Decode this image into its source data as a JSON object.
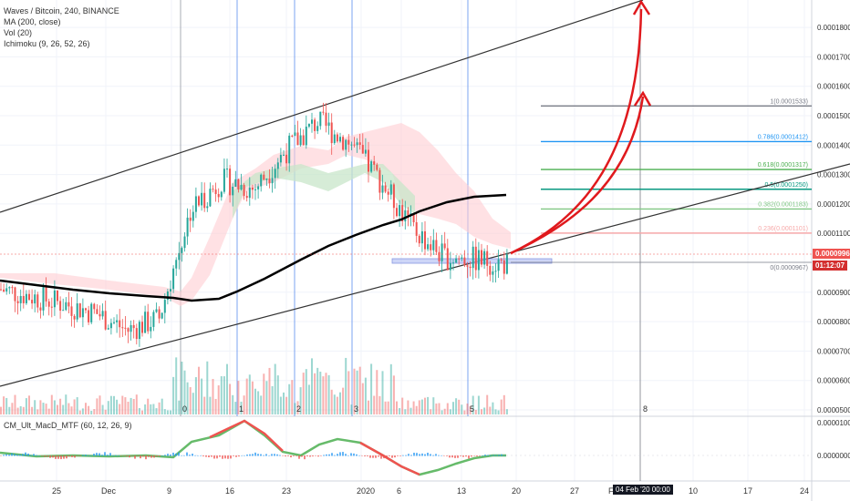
{
  "legend": {
    "title": "Waves / Bitcoin, 240, BINANCE",
    "ma": "MA (200, close)",
    "vol": "Vol (20)",
    "ichimoku": "Ichimoku (9, 26, 52, 26)"
  },
  "macd_legend": "CM_Ult_MacD_MTF (60, 12, 26, 9)",
  "price_axis": [
    {
      "label": "0.0001800",
      "price": 0.00018
    },
    {
      "label": "0.0001700",
      "price": 0.00017
    },
    {
      "label": "0.0001600",
      "price": 0.00016
    },
    {
      "label": "0.0001500",
      "price": 0.00015
    },
    {
      "label": "0.0001400",
      "price": 0.00014
    },
    {
      "label": "0.0001300",
      "price": 0.00013
    },
    {
      "label": "0.0001200",
      "price": 0.00012
    },
    {
      "label": "0.0001100",
      "price": 0.00011
    },
    {
      "label": "0.0000900",
      "price": 9e-05
    },
    {
      "label": "0.0000800",
      "price": 8e-05
    },
    {
      "label": "0.0000700",
      "price": 7e-05
    },
    {
      "label": "0.0000600",
      "price": 6e-05
    },
    {
      "label": "0.0000500",
      "price": 5e-05
    }
  ],
  "macd_axis": [
    {
      "label": "0.0000100",
      "value": 1e-05
    },
    {
      "label": "0.0000000",
      "value": 0
    }
  ],
  "current_price": {
    "label": "0.0000996",
    "price": 9.96e-05
  },
  "countdown": "01:12:07",
  "time_axis": [
    "25",
    "Dec",
    "9",
    "16",
    "23",
    "2020",
    "6",
    "13",
    "20",
    "27",
    "F",
    "10",
    "17",
    "24"
  ],
  "crosshair_time": "04 Feb '20  00:00",
  "fib_levels": [
    {
      "label": "1(0.0001533)",
      "price": 0.0001533,
      "color": "#787b86"
    },
    {
      "label": "0.786(0.0001412)",
      "price": 0.0001412,
      "color": "#2196f3"
    },
    {
      "label": "0.618(0.0001317)",
      "price": 0.0001317,
      "color": "#4caf50"
    },
    {
      "label": "0.5(0.0001250)",
      "price": 0.000125,
      "color": "#089981"
    },
    {
      "label": "0.382(0.0001183)",
      "price": 0.0001183,
      "color": "#81c784"
    },
    {
      "label": "0.236(0.0001101)",
      "price": 0.0001101,
      "color": "#f7a9a9"
    },
    {
      "label": "0(0.0000967)",
      "price": 9.67e-05,
      "color": "#787b86"
    }
  ],
  "vline_labels": [
    "0",
    "1",
    "2",
    "3",
    "4",
    "5"
  ],
  "cursor_marker": "8",
  "colors": {
    "up": "#26a69a",
    "down": "#ef5350",
    "ma": "#000000",
    "arrow": "#e0191d",
    "vline": "#2962ff",
    "price_badge": "#ef5350",
    "time_badge": "#131722"
  },
  "chart_data": {
    "type": "candlestick",
    "symbol": "Waves / Bitcoin",
    "timeframe": "240",
    "exchange": "BINANCE",
    "price_range": [
      4.6e-05,
      0.000186
    ],
    "ma200_shape": [
      9.15e-05,
      9e-05,
      8.85e-05,
      8.75e-05,
      8.7e-05,
      8.7e-05,
      8.8e-05,
      9.45e-05,
      0.000103,
      0.000112,
      0.000118,
      0.0001195
    ],
    "close_path": [
      9.1e-05,
      8.85e-05,
      8.6e-05,
      8.3e-05,
      7.7e-05,
      8.1e-05,
      0.000118,
      0.000128,
      0.000125,
      0.000138,
      0.000148,
      0.000141,
      0.000128,
      0.000112,
      0.000102,
      0.000101,
      9.96e-05
    ]
  }
}
